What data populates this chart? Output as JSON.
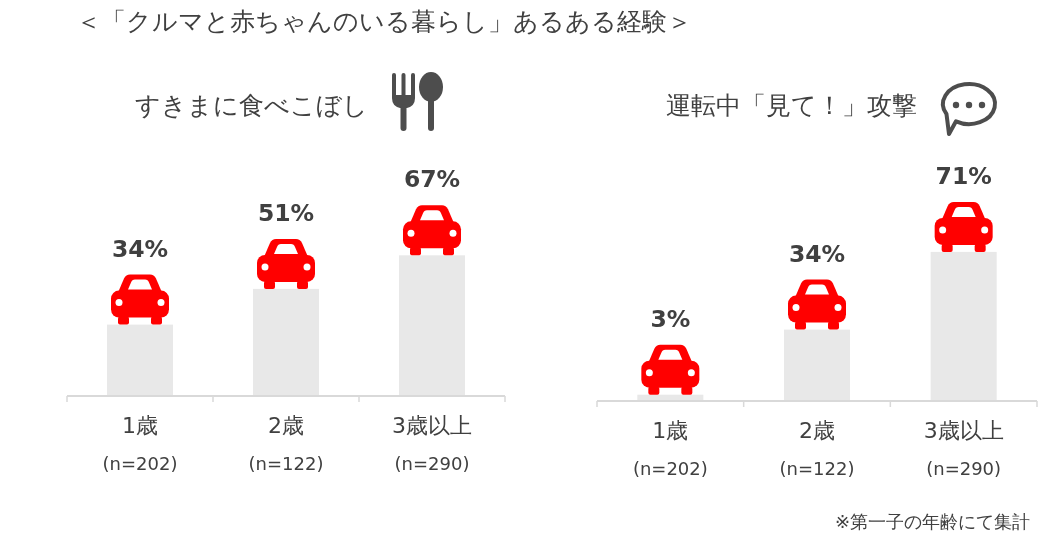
{
  "chart_data": [
    {
      "type": "other",
      "title": "＜「クルマと赤ちゃんのいる暮らし」あるある経験＞",
      "annotations": [
        "※第一子の年齢にて集計"
      ]
    },
    {
      "type": "bar",
      "title": "すきまに食べこぼし",
      "categories": [
        "1歳\n(n=202)",
        "2歳\n(n=122)",
        "3歳以上\n(n=290)"
      ],
      "values": [
        34,
        51,
        67
      ],
      "value_labels": [
        "34%",
        "51%",
        "67%"
      ],
      "color": "#e8e8e8"
    },
    {
      "type": "bar",
      "title": "運転中「見て！」攻撃",
      "categories": [
        "1歳\n(n=202)",
        "2歳\n(n=122)",
        "3歳以上\n(n=290)"
      ],
      "values": [
        3,
        34,
        71
      ],
      "value_labels": [
        "3%",
        "34%",
        "71%"
      ],
      "color": "#e8e8e8"
    }
  ]
}
